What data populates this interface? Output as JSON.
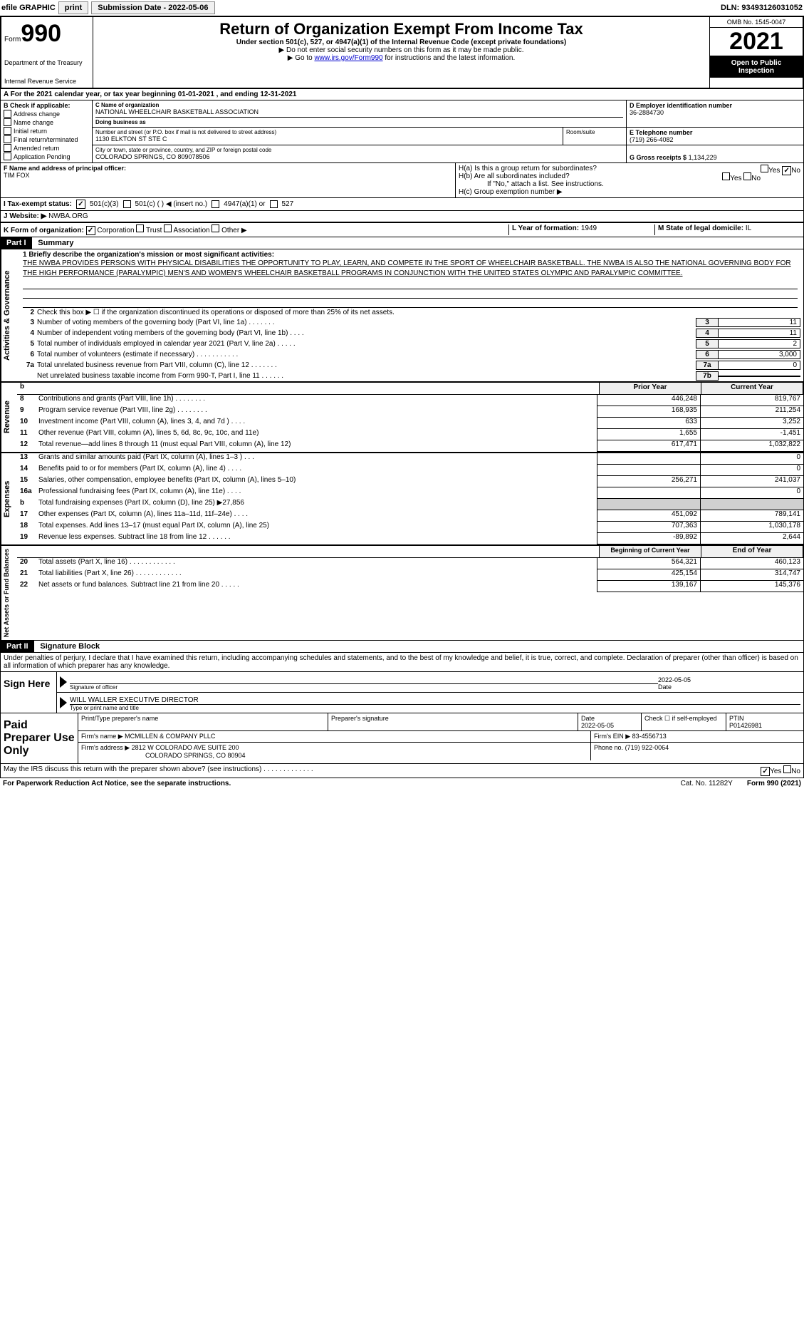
{
  "top": {
    "efile": "efile GRAPHIC",
    "print": "print",
    "sub_date_label": "Submission Date - 2022-05-06",
    "dln": "DLN: 93493126031052"
  },
  "header": {
    "form_word": "Form",
    "form_number": "990",
    "title": "Return of Organization Exempt From Income Tax",
    "subtitle": "Under section 501(c), 527, or 4947(a)(1) of the Internal Revenue Code (except private foundations)",
    "ssn_note": "▶ Do not enter social security numbers on this form as it may be made public.",
    "goto_pre": "▶ Go to ",
    "goto_link": "www.irs.gov/Form990",
    "goto_post": " for instructions and the latest information.",
    "dept": "Department of the Treasury",
    "irs": "Internal Revenue Service",
    "omb": "OMB No. 1545-0047",
    "year": "2021",
    "open": "Open to Public Inspection"
  },
  "a": {
    "cal_year": "A For the 2021 calendar year, or tax year beginning 01-01-2021    , and ending 12-31-2021",
    "b_label": "B Check if applicable:",
    "checks": [
      "Address change",
      "Name change",
      "Initial return",
      "Final return/terminated",
      "Amended return",
      "Application Pending"
    ],
    "c_label": "C Name of organization",
    "org_name": "NATIONAL WHEELCHAIR BASKETBALL ASSOCIATION",
    "dba_label": "Doing business as",
    "dba": "",
    "street_label": "Number and street (or P.O. box if mail is not delivered to street address)",
    "street": "1130 ELKTON ST STE C",
    "room_label": "Room/suite",
    "city_label": "City or town, state or province, country, and ZIP or foreign postal code",
    "city": "COLORADO SPRINGS, CO  809078506",
    "d_label": "D Employer identification number",
    "ein": "36-2884730",
    "e_label": "E Telephone number",
    "phone": "(719) 266-4082",
    "g_label": "G Gross receipts $",
    "gross": "1,134,229",
    "f_label": "F Name and address of principal officer:",
    "officer": "TIM FOX",
    "h_a": "H(a)  Is this a group return for subordinates?",
    "h_b": "H(b)  Are all subordinates included?",
    "h_note": "If \"No,\" attach a list. See instructions.",
    "h_c": "H(c)  Group exemption number ▶",
    "yes": "Yes",
    "no": "No",
    "i_label": "I    Tax-exempt status:",
    "i_501c3": "501(c)(3)",
    "i_501c": "501(c) (    ) ◀ (insert no.)",
    "i_4947": "4947(a)(1) or",
    "i_527": "527",
    "j_label": "J    Website: ▶",
    "website": "NWBA.ORG",
    "k_label": "K Form of organization:",
    "k_corp": "Corporation",
    "k_trust": "Trust",
    "k_assoc": "Association",
    "k_other": "Other ▶",
    "l_label": "L Year of formation:",
    "l_val": "1949",
    "m_label": "M State of legal domicile:",
    "m_val": "IL"
  },
  "part1": {
    "header": "Part I",
    "title": "Summary",
    "vlabel1": "Activities & Governance",
    "vlabel2": "Revenue",
    "vlabel3": "Expenses",
    "vlabel4": "Net Assets or Fund Balances",
    "line1_label": "1  Briefly describe the organization's mission or most significant activities:",
    "mission": "THE NWBA PROVIDES PERSONS WITH PHYSICAL DISABILITIES THE OPPORTUNITY TO PLAY, LEARN, AND COMPETE IN THE SPORT OF WHEELCHAIR BASKETBALL. THE NWBA IS ALSO THE NATIONAL GOVERNING BODY FOR THE HIGH PERFORMANCE (PARALYMPIC) MEN'S AND WOMEN'S WHEELCHAIR BASKETBALL PROGRAMS IN CONJUNCTION WITH THE UNITED STATES OLYMPIC AND PARALYMPIC COMMITTEE.",
    "line2": "Check this box ▶ ☐ if the organization discontinued its operations or disposed of more than 25% of its net assets.",
    "lines_boxed": [
      {
        "n": "3",
        "d": "Number of voting members of the governing body (Part VI, line 1a)   .    .    .    .    .    .    .",
        "b": "3",
        "v": "11"
      },
      {
        "n": "4",
        "d": "Number of independent voting members of the governing body (Part VI, line 1b)    .    .    .    .",
        "b": "4",
        "v": "11"
      },
      {
        "n": "5",
        "d": "Total number of individuals employed in calendar year 2021 (Part V, line 2a)    .    .    .    .    .",
        "b": "5",
        "v": "2"
      },
      {
        "n": "6",
        "d": "Total number of volunteers (estimate if necessary)    .    .    .    .    .    .    .    .    .    .    .",
        "b": "6",
        "v": "3,000"
      },
      {
        "n": "7a",
        "d": "Total unrelated business revenue from Part VIII, column (C), line 12   .    .    .    .    .    .    .",
        "b": "7a",
        "v": "0"
      },
      {
        "n": "",
        "d": "Net unrelated business taxable income from Form 990-T, Part I, line 11    .    .    .    .    .    .",
        "b": "7b",
        "v": ""
      }
    ],
    "col_head1": "Prior Year",
    "col_head2": "Current Year",
    "revenue": [
      {
        "n": "8",
        "d": "Contributions and grants (Part VIII, line 1h)   .    .    .    .    .    .    .    .",
        "v1": "446,248",
        "v2": "819,767"
      },
      {
        "n": "9",
        "d": "Program service revenue (Part VIII, line 2g)   .    .    .    .    .    .    .    .",
        "v1": "168,935",
        "v2": "211,254"
      },
      {
        "n": "10",
        "d": "Investment income (Part VIII, column (A), lines 3, 4, and 7d )   .    .    .    .",
        "v1": "633",
        "v2": "3,252"
      },
      {
        "n": "11",
        "d": "Other revenue (Part VIII, column (A), lines 5, 6d, 8c, 9c, 10c, and 11e)",
        "v1": "1,655",
        "v2": "-1,451"
      },
      {
        "n": "12",
        "d": "Total revenue—add lines 8 through 11 (must equal Part VIII, column (A), line 12)",
        "v1": "617,471",
        "v2": "1,032,822"
      }
    ],
    "expenses": [
      {
        "n": "13",
        "d": "Grants and similar amounts paid (Part IX, column (A), lines 1–3 )  .    .    .",
        "v1": "",
        "v2": "0"
      },
      {
        "n": "14",
        "d": "Benefits paid to or for members (Part IX, column (A), line 4)   .    .    .    .",
        "v1": "",
        "v2": "0"
      },
      {
        "n": "15",
        "d": "Salaries, other compensation, employee benefits (Part IX, column (A), lines 5–10)",
        "v1": "256,271",
        "v2": "241,037"
      },
      {
        "n": "16a",
        "d": "Professional fundraising fees (Part IX, column (A), line 11e)   .    .    .    .",
        "v1": "",
        "v2": "0"
      },
      {
        "n": "b",
        "d": "Total fundraising expenses (Part IX, column (D), line 25) ▶27,856",
        "v1": "shaded",
        "v2": "shaded"
      },
      {
        "n": "17",
        "d": "Other expenses (Part IX, column (A), lines 11a–11d, 11f–24e)    .    .    .    .",
        "v1": "451,092",
        "v2": "789,141"
      },
      {
        "n": "18",
        "d": "Total expenses. Add lines 13–17 (must equal Part IX, column (A), line 25)",
        "v1": "707,363",
        "v2": "1,030,178"
      },
      {
        "n": "19",
        "d": "Revenue less expenses. Subtract line 18 from line 12   .    .    .    .    .    .",
        "v1": "-89,892",
        "v2": "2,644"
      }
    ],
    "col_head3": "Beginning of Current Year",
    "col_head4": "End of Year",
    "netassets": [
      {
        "n": "20",
        "d": "Total assets (Part X, line 16)   .    .    .    .    .    .    .    .    .    .    .    .",
        "v1": "564,321",
        "v2": "460,123"
      },
      {
        "n": "21",
        "d": "Total liabilities (Part X, line 26)  .    .    .    .    .    .    .    .    .    .    .    .",
        "v1": "425,154",
        "v2": "314,747"
      },
      {
        "n": "22",
        "d": "Net assets or fund balances. Subtract line 21 from line 20    .    .    .    .    .",
        "v1": "139,167",
        "v2": "145,376"
      }
    ]
  },
  "part2": {
    "header": "Part II",
    "title": "Signature Block",
    "declaration": "Under penalties of perjury, I declare that I have examined this return, including accompanying schedules and statements, and to the best of my knowledge and belief, it is true, correct, and complete. Declaration of preparer (other than officer) is based on all information of which preparer has any knowledge.",
    "sign_here": "Sign Here",
    "sig_of_officer": "Signature of officer",
    "sig_date": "2022-05-05",
    "date_label": "Date",
    "officer_name": "WILL WALLER  EXECUTIVE DIRECTOR",
    "type_name": "Type or print name and title",
    "paid_preparer": "Paid Preparer Use Only",
    "prep_name_label": "Print/Type preparer's name",
    "prep_sig_label": "Preparer's signature",
    "prep_date_label": "Date",
    "prep_date": "2022-05-05",
    "check_self": "Check ☐ if self-employed",
    "ptin_label": "PTIN",
    "ptin": "P01426981",
    "firm_name_label": "Firm's name    ▶",
    "firm_name": "MCMILLEN & COMPANY PLLC",
    "firm_ein_label": "Firm's EIN ▶",
    "firm_ein": "83-4556713",
    "firm_addr_label": "Firm's address ▶",
    "firm_addr1": "2812 W COLORADO AVE SUITE 200",
    "firm_addr2": "COLORADO SPRINGS, CO   80904",
    "phone_label": "Phone no.",
    "phone": "(719) 922-0064",
    "discuss": "May the IRS discuss this return with the preparer shown above? (see instructions)   .    .    .    .    .    .    .    .    .    .    .    .    ."
  },
  "footer": {
    "pra": "For Paperwork Reduction Act Notice, see the separate instructions.",
    "cat": "Cat. No. 11282Y",
    "form": "Form 990 (2021)"
  }
}
